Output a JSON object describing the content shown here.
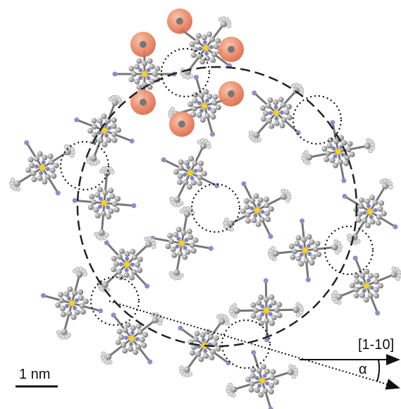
{
  "labels": {
    "direction": "[1-10]",
    "angle": "α",
    "scale_bar": "1 nm"
  }
}
